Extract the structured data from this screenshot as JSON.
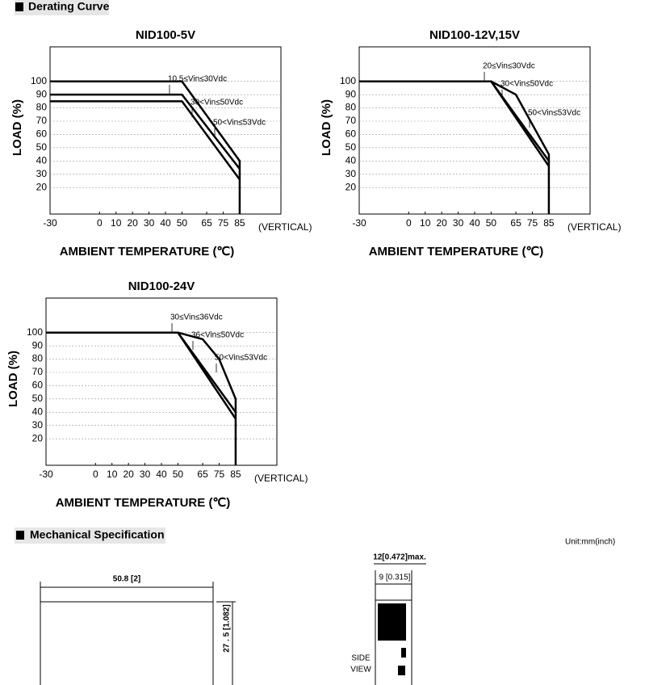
{
  "derating_title": "Derating Curve",
  "chart_data": [
    {
      "type": "line",
      "title": "NID100-5V",
      "x_label": "AMBIENT TEMPERATURE (℃)",
      "y_label": "LOAD (%)",
      "note": "(VERTICAL)",
      "xlim": [
        -30,
        110
      ],
      "ylim": [
        0,
        126
      ],
      "xticks": [
        -30,
        0,
        10,
        20,
        30,
        40,
        50,
        65,
        75,
        85
      ],
      "yticks": [
        20,
        30,
        40,
        50,
        60,
        70,
        80,
        90,
        100
      ],
      "grid": true,
      "series": [
        {
          "name": "10.5≤Vin≤30Vdc",
          "color": "#000000",
          "x": [
            -30,
            50,
            85,
            85
          ],
          "values": [
            100,
            100,
            40,
            0
          ]
        },
        {
          "name": "30<Vin≤50Vdc",
          "color": "#000000",
          "x": [
            -30,
            50,
            85
          ],
          "values": [
            90,
            90,
            34
          ]
        },
        {
          "name": "50<Vin≤53Vdc",
          "color": "#000000",
          "x": [
            -30,
            50,
            85
          ],
          "values": [
            85,
            85,
            26
          ]
        }
      ]
    },
    {
      "type": "line",
      "title": "NID100-12V,15V",
      "x_label": "AMBIENT TEMPERATURE (℃)",
      "y_label": "LOAD (%)",
      "note": "(VERTICAL)",
      "xlim": [
        -30,
        110
      ],
      "ylim": [
        0,
        126
      ],
      "xticks": [
        -30,
        0,
        10,
        20,
        30,
        40,
        50,
        65,
        75,
        85
      ],
      "yticks": [
        20,
        30,
        40,
        50,
        60,
        70,
        80,
        90,
        100
      ],
      "grid": true,
      "series": [
        {
          "name": "20≤Vin≤30Vdc",
          "color": "#000000",
          "x": [
            -30,
            50,
            65,
            85,
            85
          ],
          "values": [
            100,
            100,
            90,
            45,
            0
          ]
        },
        {
          "name": "30<Vin≤50Vdc",
          "color": "#000000",
          "x": [
            -30,
            50,
            85
          ],
          "values": [
            100,
            100,
            40
          ]
        },
        {
          "name": "50<Vin≤53Vdc",
          "color": "#000000",
          "x": [
            -30,
            50,
            85
          ],
          "values": [
            100,
            100,
            36
          ]
        }
      ]
    },
    {
      "type": "line",
      "title": "NID100-24V",
      "x_label": "AMBIENT TEMPERATURE (℃)",
      "y_label": "LOAD (%)",
      "note": "(VERTICAL)",
      "xlim": [
        -30,
        110
      ],
      "ylim": [
        0,
        126
      ],
      "xticks": [
        -30,
        0,
        10,
        20,
        30,
        40,
        50,
        65,
        75,
        85
      ],
      "yticks": [
        20,
        30,
        40,
        50,
        60,
        70,
        80,
        90,
        100
      ],
      "grid": true,
      "series": [
        {
          "name": "30≤Vin≤36Vdc",
          "color": "#000000",
          "x": [
            -30,
            50,
            65,
            75,
            85,
            85
          ],
          "values": [
            100,
            100,
            95,
            80,
            50,
            0
          ]
        },
        {
          "name": "36<Vin≤50Vdc",
          "color": "#000000",
          "x": [
            -30,
            50,
            85
          ],
          "values": [
            100,
            100,
            40
          ]
        },
        {
          "name": "50<Vin≤53Vdc",
          "color": "#000000",
          "x": [
            -30,
            50,
            85
          ],
          "values": [
            100,
            100,
            35
          ]
        }
      ]
    }
  ],
  "mechanical": {
    "title": "Mechanical Specification",
    "unit": "Unit:mm(inch)",
    "width": "50.8 [2]",
    "height": "27 . 5 [1.082]",
    "depth_max": "12[0.472]max.",
    "depth": "9 [0.315]",
    "side_view": [
      "SIDE",
      "VIEW"
    ]
  }
}
